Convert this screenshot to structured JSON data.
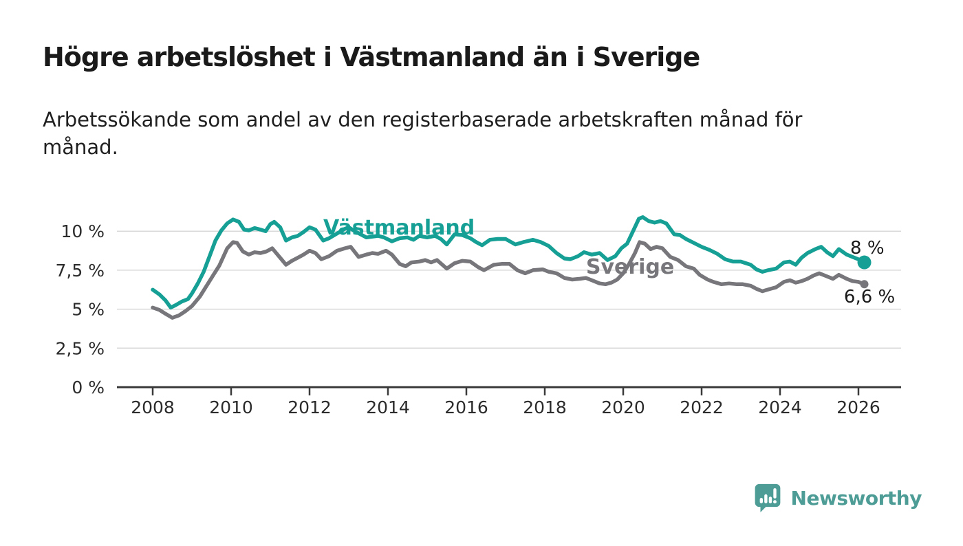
{
  "header": {
    "title": "Högre arbetslöshet i Västmanland än i Sverige",
    "subtitle": "Arbetssökande som andel av den registerbaserade arbetskraften månad för\nmånad."
  },
  "chart_data": {
    "type": "line",
    "title": "Högre arbetslöshet i Västmanland än i Sverige",
    "subtitle": "Arbetssökande som andel av den registerbaserade arbetskraften månad för månad.",
    "xlabel": "",
    "ylabel": "",
    "grid": "horizontal",
    "legend_position": "inline-labels",
    "x_range": [
      2007.1,
      2027.1
    ],
    "y_range": [
      0,
      11.6
    ],
    "y_ticks": [
      {
        "label": "0 %",
        "value": 0
      },
      {
        "label": "2,5 %",
        "value": 2.5
      },
      {
        "label": "5 %",
        "value": 5
      },
      {
        "label": "7,5 %",
        "value": 7.5
      },
      {
        "label": "10 %",
        "value": 10
      }
    ],
    "x_ticks": [
      {
        "label": "2008",
        "value": 2008
      },
      {
        "label": "2010",
        "value": 2010
      },
      {
        "label": "2012",
        "value": 2012
      },
      {
        "label": "2014",
        "value": 2014
      },
      {
        "label": "2016",
        "value": 2016
      },
      {
        "label": "2018",
        "value": 2018
      },
      {
        "label": "2020",
        "value": 2020
      },
      {
        "label": "2022",
        "value": 2022
      },
      {
        "label": "2024",
        "value": 2024
      },
      {
        "label": "2026",
        "value": 2026
      }
    ],
    "series": [
      {
        "name": "Sverige",
        "color": "#76767b",
        "label": {
          "text": "Sverige",
          "at": [
            2019.05,
            7.27
          ]
        },
        "end_dot": {
          "at": [
            2026.15,
            6.6
          ],
          "radius": 6
        },
        "end_value_label": {
          "text": "6,6 %",
          "at": [
            2025.63,
            5.42
          ]
        },
        "points": [
          [
            2008.0,
            5.1
          ],
          [
            2008.17,
            4.95
          ],
          [
            2008.33,
            4.7
          ],
          [
            2008.5,
            4.45
          ],
          [
            2008.67,
            4.6
          ],
          [
            2008.85,
            4.9
          ],
          [
            2009.0,
            5.2
          ],
          [
            2009.2,
            5.8
          ],
          [
            2009.4,
            6.6
          ],
          [
            2009.55,
            7.2
          ],
          [
            2009.7,
            7.8
          ],
          [
            2009.9,
            8.9
          ],
          [
            2010.05,
            9.3
          ],
          [
            2010.15,
            9.25
          ],
          [
            2010.3,
            8.7
          ],
          [
            2010.45,
            8.5
          ],
          [
            2010.6,
            8.65
          ],
          [
            2010.75,
            8.6
          ],
          [
            2010.9,
            8.7
          ],
          [
            2011.05,
            8.9
          ],
          [
            2011.2,
            8.45
          ],
          [
            2011.4,
            7.85
          ],
          [
            2011.55,
            8.1
          ],
          [
            2011.7,
            8.3
          ],
          [
            2011.85,
            8.5
          ],
          [
            2012.0,
            8.75
          ],
          [
            2012.15,
            8.6
          ],
          [
            2012.3,
            8.2
          ],
          [
            2012.5,
            8.4
          ],
          [
            2012.7,
            8.75
          ],
          [
            2012.9,
            8.9
          ],
          [
            2013.05,
            9.0
          ],
          [
            2013.25,
            8.35
          ],
          [
            2013.45,
            8.5
          ],
          [
            2013.6,
            8.6
          ],
          [
            2013.75,
            8.55
          ],
          [
            2013.95,
            8.75
          ],
          [
            2014.1,
            8.5
          ],
          [
            2014.3,
            7.9
          ],
          [
            2014.45,
            7.75
          ],
          [
            2014.6,
            8.0
          ],
          [
            2014.8,
            8.05
          ],
          [
            2014.95,
            8.15
          ],
          [
            2015.1,
            8.0
          ],
          [
            2015.25,
            8.15
          ],
          [
            2015.5,
            7.6
          ],
          [
            2015.7,
            7.95
          ],
          [
            2015.9,
            8.1
          ],
          [
            2016.1,
            8.05
          ],
          [
            2016.3,
            7.7
          ],
          [
            2016.45,
            7.5
          ],
          [
            2016.7,
            7.85
          ],
          [
            2016.9,
            7.9
          ],
          [
            2017.1,
            7.9
          ],
          [
            2017.3,
            7.5
          ],
          [
            2017.5,
            7.3
          ],
          [
            2017.7,
            7.5
          ],
          [
            2017.95,
            7.55
          ],
          [
            2018.1,
            7.4
          ],
          [
            2018.3,
            7.3
          ],
          [
            2018.5,
            7.0
          ],
          [
            2018.7,
            6.9
          ],
          [
            2018.9,
            6.95
          ],
          [
            2019.05,
            7.0
          ],
          [
            2019.2,
            6.85
          ],
          [
            2019.4,
            6.65
          ],
          [
            2019.55,
            6.6
          ],
          [
            2019.7,
            6.7
          ],
          [
            2019.85,
            6.9
          ],
          [
            2020.0,
            7.3
          ],
          [
            2020.15,
            7.9
          ],
          [
            2020.3,
            8.6
          ],
          [
            2020.42,
            9.3
          ],
          [
            2020.55,
            9.2
          ],
          [
            2020.7,
            8.85
          ],
          [
            2020.85,
            9.0
          ],
          [
            2021.0,
            8.9
          ],
          [
            2021.2,
            8.35
          ],
          [
            2021.4,
            8.15
          ],
          [
            2021.6,
            7.75
          ],
          [
            2021.8,
            7.6
          ],
          [
            2021.95,
            7.2
          ],
          [
            2022.15,
            6.9
          ],
          [
            2022.3,
            6.75
          ],
          [
            2022.5,
            6.6
          ],
          [
            2022.7,
            6.65
          ],
          [
            2022.9,
            6.6
          ],
          [
            2023.05,
            6.6
          ],
          [
            2023.25,
            6.5
          ],
          [
            2023.4,
            6.3
          ],
          [
            2023.55,
            6.15
          ],
          [
            2023.75,
            6.3
          ],
          [
            2023.9,
            6.4
          ],
          [
            2024.1,
            6.75
          ],
          [
            2024.25,
            6.85
          ],
          [
            2024.4,
            6.7
          ],
          [
            2024.55,
            6.8
          ],
          [
            2024.7,
            6.95
          ],
          [
            2024.85,
            7.15
          ],
          [
            2025.0,
            7.3
          ],
          [
            2025.2,
            7.1
          ],
          [
            2025.35,
            6.95
          ],
          [
            2025.5,
            7.2
          ],
          [
            2025.7,
            6.95
          ],
          [
            2025.85,
            6.8
          ],
          [
            2026.0,
            6.75
          ],
          [
            2026.15,
            6.6
          ]
        ]
      },
      {
        "name": "Västmanland",
        "color": "#16a095",
        "label": {
          "text": "Västmanland",
          "at": [
            2012.35,
            9.79
          ]
        },
        "end_dot": {
          "at": [
            2026.15,
            8.0
          ],
          "radius": 10
        },
        "end_value_label": {
          "text": "8 %",
          "at": [
            2025.79,
            8.55
          ]
        },
        "points": [
          [
            2008.0,
            6.25
          ],
          [
            2008.17,
            5.95
          ],
          [
            2008.33,
            5.55
          ],
          [
            2008.46,
            5.1
          ],
          [
            2008.58,
            5.25
          ],
          [
            2008.75,
            5.5
          ],
          [
            2008.9,
            5.65
          ],
          [
            2009.0,
            6.0
          ],
          [
            2009.15,
            6.65
          ],
          [
            2009.3,
            7.4
          ],
          [
            2009.45,
            8.4
          ],
          [
            2009.6,
            9.4
          ],
          [
            2009.75,
            10.05
          ],
          [
            2009.9,
            10.5
          ],
          [
            2010.05,
            10.75
          ],
          [
            2010.2,
            10.6
          ],
          [
            2010.33,
            10.1
          ],
          [
            2010.45,
            10.05
          ],
          [
            2010.6,
            10.2
          ],
          [
            2010.75,
            10.1
          ],
          [
            2010.88,
            10.0
          ],
          [
            2011.0,
            10.45
          ],
          [
            2011.1,
            10.6
          ],
          [
            2011.25,
            10.25
          ],
          [
            2011.4,
            9.4
          ],
          [
            2011.55,
            9.6
          ],
          [
            2011.7,
            9.7
          ],
          [
            2011.85,
            9.95
          ],
          [
            2012.0,
            10.25
          ],
          [
            2012.15,
            10.1
          ],
          [
            2012.35,
            9.4
          ],
          [
            2012.5,
            9.55
          ],
          [
            2012.7,
            9.85
          ],
          [
            2012.9,
            10.15
          ],
          [
            2013.0,
            10.25
          ],
          [
            2013.15,
            10.0
          ],
          [
            2013.3,
            9.8
          ],
          [
            2013.45,
            9.6
          ],
          [
            2013.6,
            9.65
          ],
          [
            2013.75,
            9.7
          ],
          [
            2013.9,
            9.6
          ],
          [
            2014.1,
            9.35
          ],
          [
            2014.3,
            9.55
          ],
          [
            2014.5,
            9.6
          ],
          [
            2014.65,
            9.45
          ],
          [
            2014.8,
            9.7
          ],
          [
            2015.0,
            9.6
          ],
          [
            2015.2,
            9.7
          ],
          [
            2015.35,
            9.5
          ],
          [
            2015.5,
            9.15
          ],
          [
            2015.7,
            9.8
          ],
          [
            2015.9,
            9.75
          ],
          [
            2016.1,
            9.55
          ],
          [
            2016.25,
            9.3
          ],
          [
            2016.4,
            9.1
          ],
          [
            2016.6,
            9.45
          ],
          [
            2016.8,
            9.5
          ],
          [
            2017.0,
            9.5
          ],
          [
            2017.25,
            9.15
          ],
          [
            2017.45,
            9.3
          ],
          [
            2017.7,
            9.45
          ],
          [
            2017.9,
            9.3
          ],
          [
            2018.1,
            9.05
          ],
          [
            2018.3,
            8.6
          ],
          [
            2018.5,
            8.25
          ],
          [
            2018.65,
            8.2
          ],
          [
            2018.85,
            8.4
          ],
          [
            2019.0,
            8.65
          ],
          [
            2019.2,
            8.5
          ],
          [
            2019.4,
            8.6
          ],
          [
            2019.6,
            8.15
          ],
          [
            2019.8,
            8.4
          ],
          [
            2019.95,
            8.9
          ],
          [
            2020.1,
            9.2
          ],
          [
            2020.25,
            10.0
          ],
          [
            2020.4,
            10.8
          ],
          [
            2020.5,
            10.9
          ],
          [
            2020.65,
            10.65
          ],
          [
            2020.8,
            10.55
          ],
          [
            2020.95,
            10.65
          ],
          [
            2021.1,
            10.5
          ],
          [
            2021.3,
            9.8
          ],
          [
            2021.45,
            9.75
          ],
          [
            2021.6,
            9.5
          ],
          [
            2021.8,
            9.25
          ],
          [
            2022.0,
            9.0
          ],
          [
            2022.2,
            8.8
          ],
          [
            2022.4,
            8.55
          ],
          [
            2022.6,
            8.2
          ],
          [
            2022.8,
            8.05
          ],
          [
            2023.0,
            8.05
          ],
          [
            2023.25,
            7.85
          ],
          [
            2023.4,
            7.55
          ],
          [
            2023.55,
            7.4
          ],
          [
            2023.7,
            7.5
          ],
          [
            2023.9,
            7.6
          ],
          [
            2024.1,
            8.0
          ],
          [
            2024.25,
            8.05
          ],
          [
            2024.4,
            7.85
          ],
          [
            2024.55,
            8.3
          ],
          [
            2024.7,
            8.6
          ],
          [
            2024.9,
            8.85
          ],
          [
            2025.05,
            9.0
          ],
          [
            2025.2,
            8.65
          ],
          [
            2025.35,
            8.4
          ],
          [
            2025.5,
            8.85
          ],
          [
            2025.7,
            8.5
          ],
          [
            2025.9,
            8.3
          ],
          [
            2026.05,
            8.15
          ],
          [
            2026.15,
            8.0
          ]
        ]
      }
    ]
  },
  "footer": {
    "brand": "Newsworthy",
    "brand_color": "#4d9c96"
  }
}
